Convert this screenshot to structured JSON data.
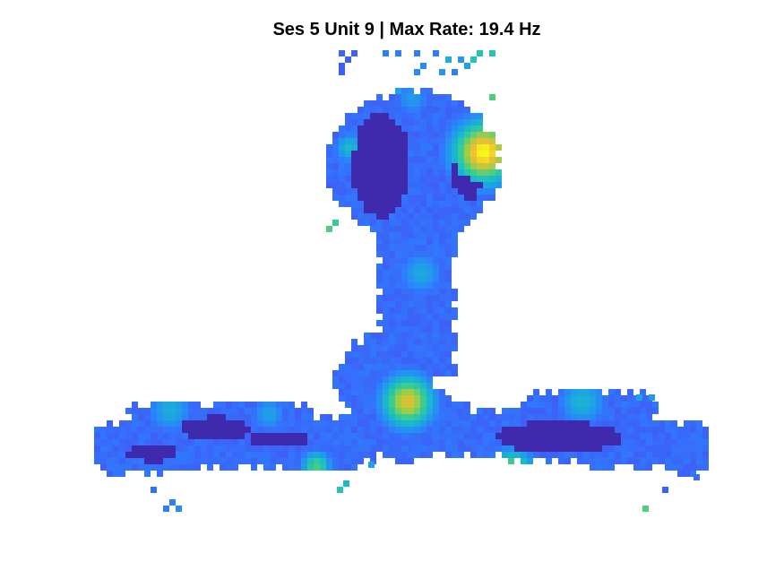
{
  "chart_data": {
    "type": "heatmap",
    "title": "Ses 5 Unit 9 | Max Rate: 19.4 Hz",
    "xlabel": "",
    "ylabel": "",
    "grid": false,
    "legend": "none",
    "colormap": "parula",
    "value_range_hz": [
      0,
      19.4
    ],
    "max_rate_hz": 19.4,
    "unvisited_color": "#ffffff",
    "colors": {
      "low": "#3e26a8",
      "mid_low": "#2f7bff",
      "mid": "#18b2d5",
      "mid_high": "#8bd15a",
      "high": "#f9fb15"
    }
  }
}
